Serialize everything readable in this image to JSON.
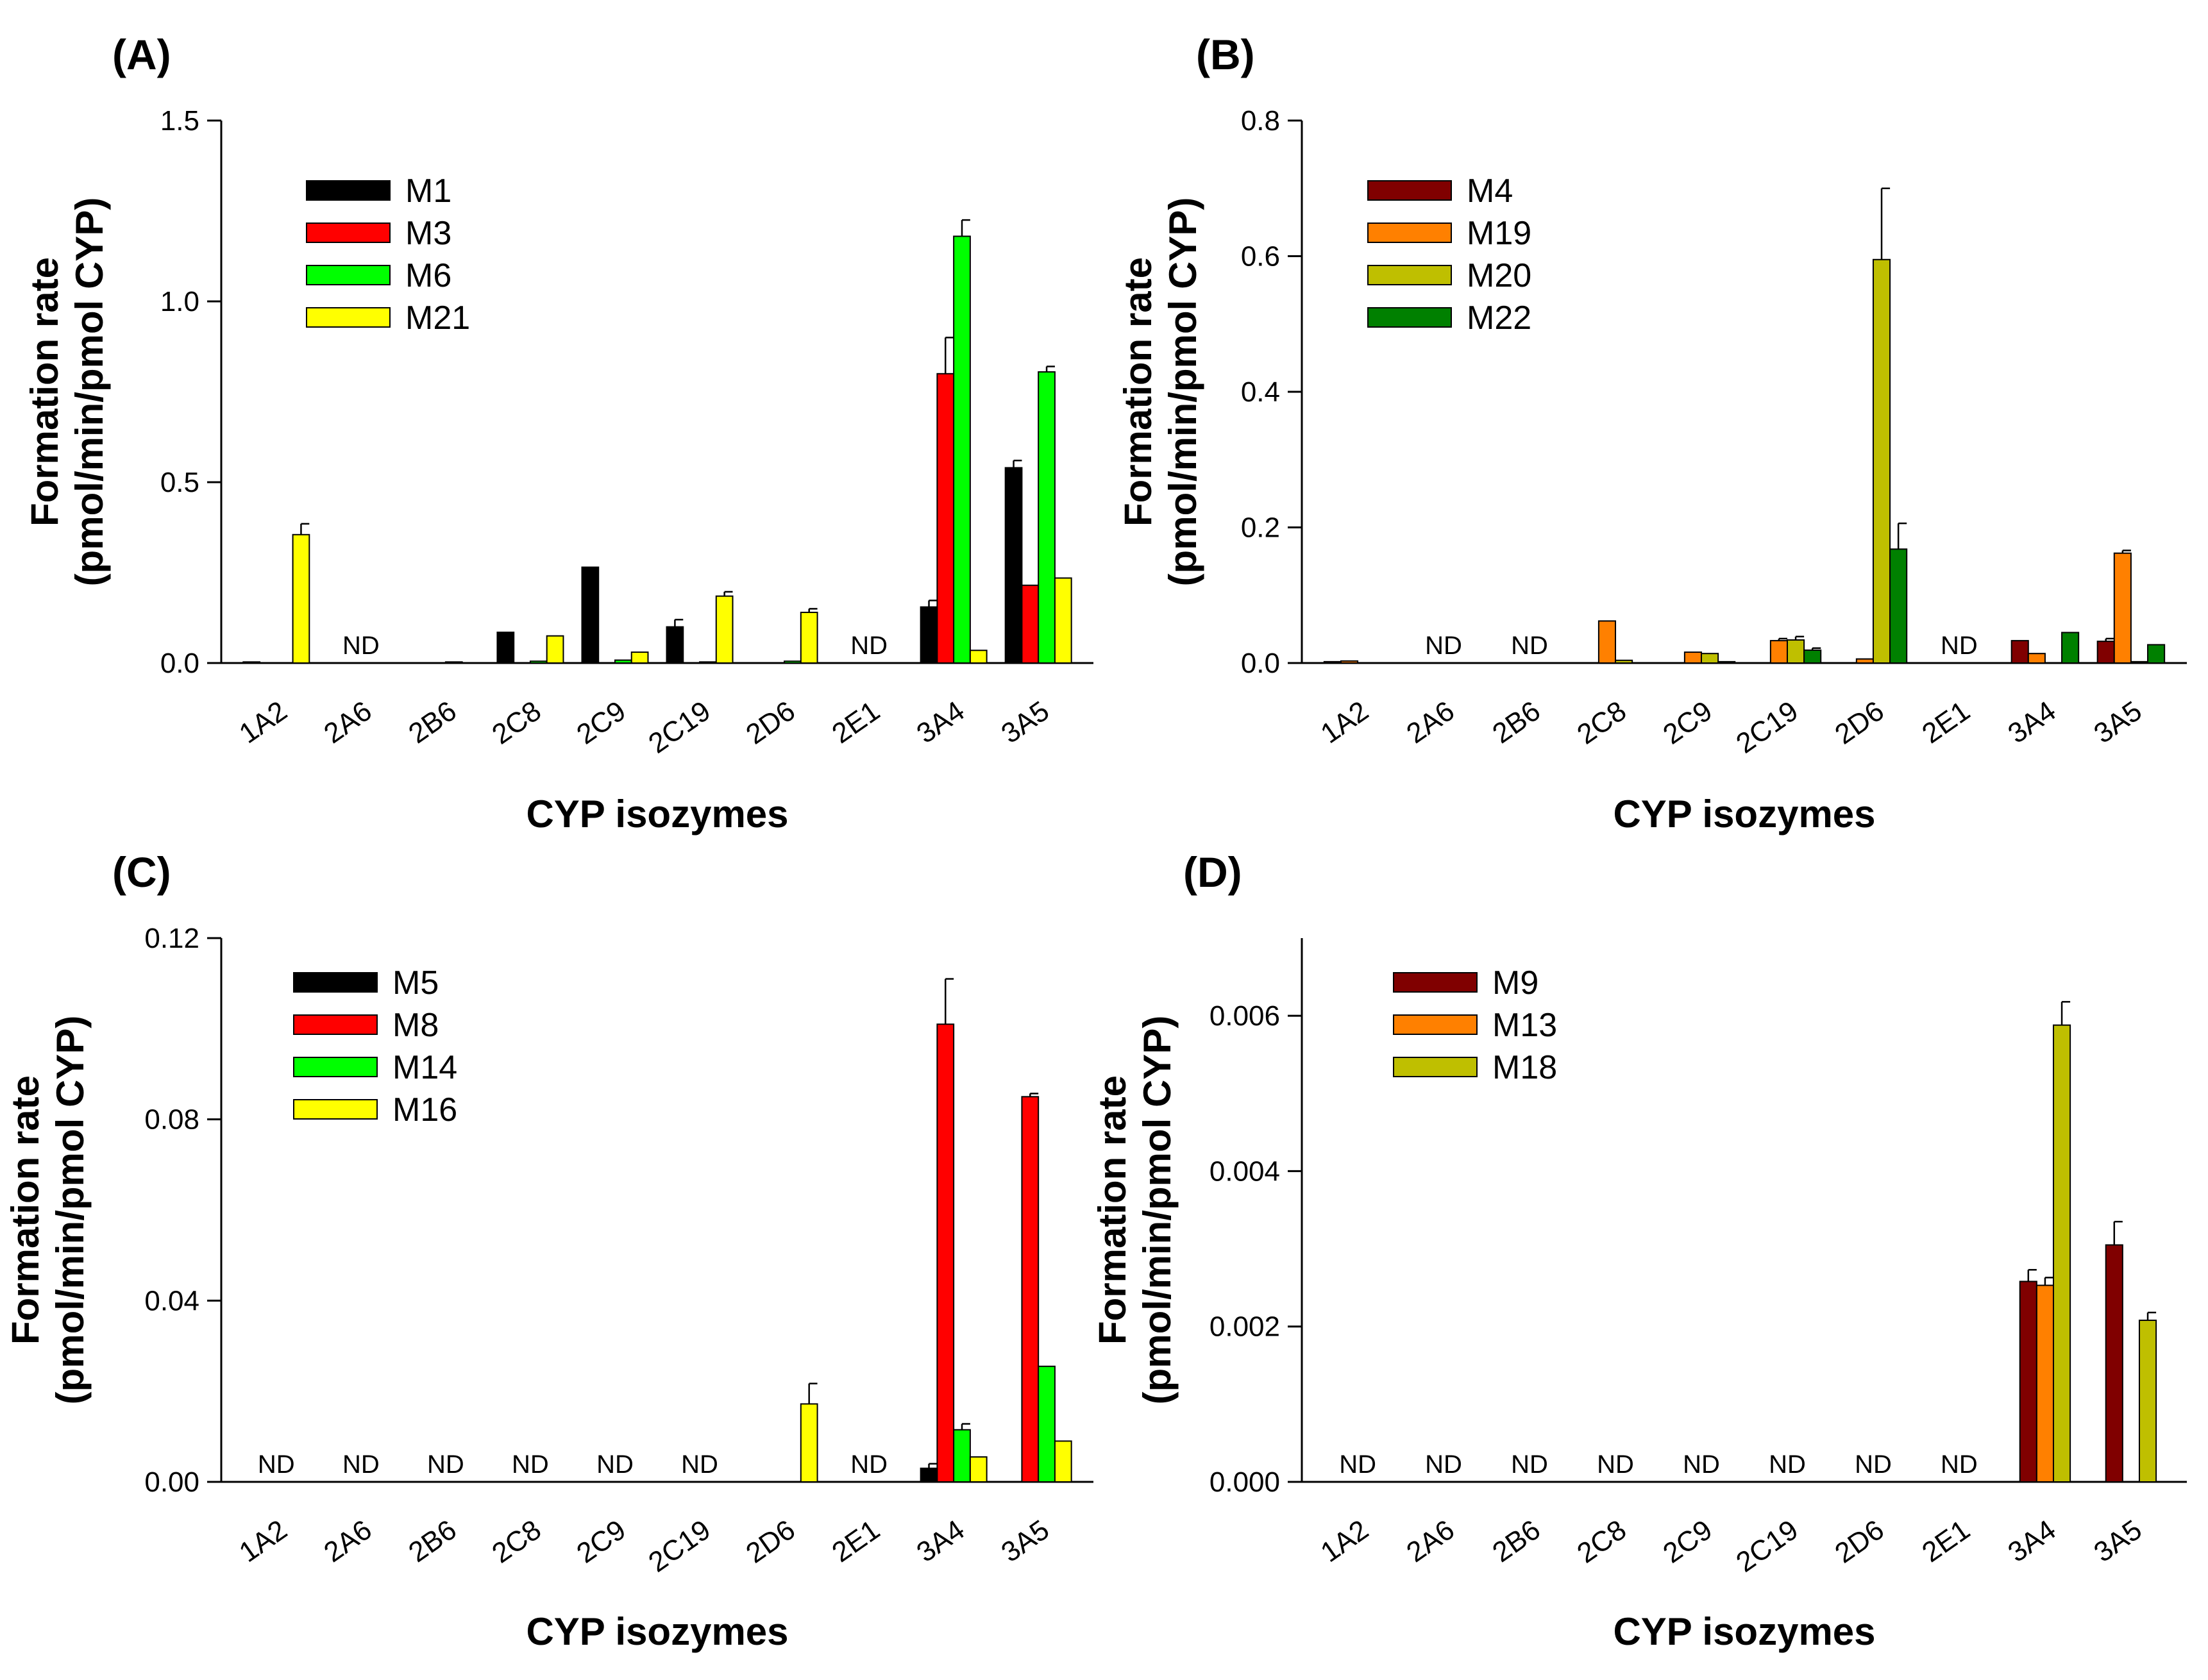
{
  "chart_data": [
    {
      "panel": "(A)",
      "type": "bar",
      "xlabel": "CYP isozymes",
      "ylabel_lines": [
        "Formation rate",
        "(pmol/min/pmol CYP)"
      ],
      "ylim": [
        0,
        1.5
      ],
      "yticks": [
        "0.0",
        "0.5",
        "1.0",
        "1.5"
      ],
      "categories": [
        "1A2",
        "2A6",
        "2B6",
        "2C8",
        "2C9",
        "2C19",
        "2D6",
        "2E1",
        "3A4",
        "3A5"
      ],
      "nd_label": "ND",
      "nd_categories": [
        "2A6",
        "2E1"
      ],
      "series": [
        {
          "name": "M1",
          "color": "#000000",
          "values": [
            0.003,
            null,
            0,
            0.085,
            0.265,
            0.1,
            0,
            null,
            0.155,
            0.54
          ],
          "errors": [
            0,
            null,
            0,
            0,
            0,
            0.02,
            0,
            null,
            0.018,
            0.02
          ]
        },
        {
          "name": "M3",
          "color": "#ff0000",
          "values": [
            0,
            null,
            0,
            0,
            0,
            0,
            0,
            null,
            0.8,
            0.215
          ],
          "errors": [
            0,
            null,
            0,
            0,
            0,
            0,
            0,
            null,
            0.1,
            0
          ]
        },
        {
          "name": "M6",
          "color": "#00ff00",
          "values": [
            0,
            null,
            0.003,
            0.005,
            0.008,
            0.003,
            0.005,
            null,
            1.18,
            0.805
          ],
          "errors": [
            0,
            null,
            0,
            0,
            0,
            0,
            0,
            null,
            0.045,
            0.015
          ]
        },
        {
          "name": "M21",
          "color": "#ffff00",
          "values": [
            0.355,
            null,
            0,
            0.075,
            0.03,
            0.185,
            0.14,
            null,
            0.035,
            0.235
          ],
          "errors": [
            0.03,
            null,
            0,
            0,
            0,
            0.012,
            0.01,
            null,
            0,
            0
          ]
        }
      ]
    },
    {
      "panel": "(B)",
      "type": "bar",
      "xlabel": "CYP isozymes",
      "ylabel_lines": [
        "Formation rate",
        "(pmol/min/pmol CYP)"
      ],
      "ylim": [
        0,
        0.8
      ],
      "yticks": [
        "0.0",
        "0.2",
        "0.4",
        "0.6",
        "0.8"
      ],
      "categories": [
        "1A2",
        "2A6",
        "2B6",
        "2C8",
        "2C9",
        "2C19",
        "2D6",
        "2E1",
        "3A4",
        "3A5"
      ],
      "nd_label": "ND",
      "nd_categories": [
        "2A6",
        "2B6",
        "2E1"
      ],
      "series": [
        {
          "name": "M4",
          "color": "#800000",
          "values": [
            0.002,
            null,
            null,
            0,
            0,
            0,
            0,
            null,
            0.033,
            0.032
          ],
          "errors": [
            0,
            null,
            null,
            0,
            0,
            0,
            0,
            null,
            0,
            0.004
          ]
        },
        {
          "name": "M19",
          "color": "#ff8000",
          "values": [
            0.003,
            null,
            null,
            0.062,
            0.016,
            0.033,
            0.006,
            null,
            0.014,
            0.162
          ],
          "errors": [
            0,
            null,
            null,
            0,
            0,
            0.003,
            0,
            null,
            0,
            0.004
          ]
        },
        {
          "name": "M20",
          "color": "#bfbf00",
          "values": [
            0,
            null,
            null,
            0.004,
            0.014,
            0.034,
            0.595,
            null,
            0,
            0.002
          ],
          "errors": [
            0,
            null,
            null,
            0,
            0,
            0.005,
            0.105,
            null,
            0,
            0
          ]
        },
        {
          "name": "M22",
          "color": "#008000",
          "values": [
            0,
            null,
            null,
            0,
            0.002,
            0.019,
            0.168,
            null,
            0.045,
            0.027
          ],
          "errors": [
            0,
            null,
            null,
            0,
            0,
            0.003,
            0.038,
            null,
            0,
            0
          ]
        }
      ]
    },
    {
      "panel": "(C)",
      "type": "bar",
      "xlabel": "CYP isozymes",
      "ylabel_lines": [
        "Formation rate",
        "(pmol/min/pmol CYP)"
      ],
      "ylim": [
        0,
        0.12
      ],
      "yticks": [
        "0.00",
        "0.04",
        "0.08",
        "0.12"
      ],
      "categories": [
        "1A2",
        "2A6",
        "2B6",
        "2C8",
        "2C9",
        "2C19",
        "2D6",
        "2E1",
        "3A4",
        "3A5"
      ],
      "nd_label": "ND",
      "nd_categories": [
        "1A2",
        "2A6",
        "2B6",
        "2C8",
        "2C9",
        "2C19",
        "2E1"
      ],
      "series": [
        {
          "name": "M5",
          "color": "#000000",
          "values": [
            null,
            null,
            null,
            null,
            null,
            null,
            0,
            null,
            0.003,
            0
          ],
          "errors": [
            null,
            null,
            null,
            null,
            null,
            null,
            0,
            null,
            0.001,
            0
          ]
        },
        {
          "name": "M8",
          "color": "#ff0000",
          "values": [
            null,
            null,
            null,
            null,
            null,
            null,
            0,
            null,
            0.101,
            0.085
          ],
          "errors": [
            null,
            null,
            null,
            null,
            null,
            null,
            0,
            null,
            0.01,
            0.0007
          ]
        },
        {
          "name": "M14",
          "color": "#00ff00",
          "values": [
            null,
            null,
            null,
            null,
            null,
            null,
            0,
            null,
            0.0115,
            0.0255
          ],
          "errors": [
            null,
            null,
            null,
            null,
            null,
            null,
            0,
            null,
            0.0013,
            0
          ]
        },
        {
          "name": "M16",
          "color": "#ffff00",
          "values": [
            null,
            null,
            null,
            null,
            null,
            null,
            0.0172,
            null,
            0.0055,
            0.009
          ],
          "errors": [
            null,
            null,
            null,
            null,
            null,
            null,
            0.0045,
            null,
            0,
            0
          ]
        }
      ]
    },
    {
      "panel": "(D)",
      "type": "bar",
      "xlabel": "CYP isozymes",
      "ylabel_lines": [
        "Formation rate",
        "(pmol/min/pmol CYP)"
      ],
      "ylim": [
        0,
        0.007
      ],
      "yticks": [
        "0.000",
        "0.002",
        "0.004",
        "0.006"
      ],
      "categories": [
        "1A2",
        "2A6",
        "2B6",
        "2C8",
        "2C9",
        "2C19",
        "2D6",
        "2E1",
        "3A4",
        "3A5"
      ],
      "nd_label": "ND",
      "nd_categories": [
        "1A2",
        "2A6",
        "2B6",
        "2C8",
        "2C9",
        "2C19",
        "2D6",
        "2E1"
      ],
      "series": [
        {
          "name": "M9",
          "color": "#800000",
          "values": [
            null,
            null,
            null,
            null,
            null,
            null,
            null,
            null,
            0.00258,
            0.00305
          ],
          "errors": [
            null,
            null,
            null,
            null,
            null,
            null,
            null,
            null,
            0.00015,
            0.0003
          ]
        },
        {
          "name": "M13",
          "color": "#ff8000",
          "values": [
            null,
            null,
            null,
            null,
            null,
            null,
            null,
            null,
            0.00253,
            0
          ],
          "errors": [
            null,
            null,
            null,
            null,
            null,
            null,
            null,
            null,
            0.0001,
            0
          ]
        },
        {
          "name": "M18",
          "color": "#bfbf00",
          "values": [
            null,
            null,
            null,
            null,
            null,
            null,
            null,
            null,
            0.00588,
            0.00208
          ],
          "errors": [
            null,
            null,
            null,
            null,
            null,
            null,
            null,
            null,
            0.0003,
            0.0001
          ]
        }
      ]
    }
  ]
}
